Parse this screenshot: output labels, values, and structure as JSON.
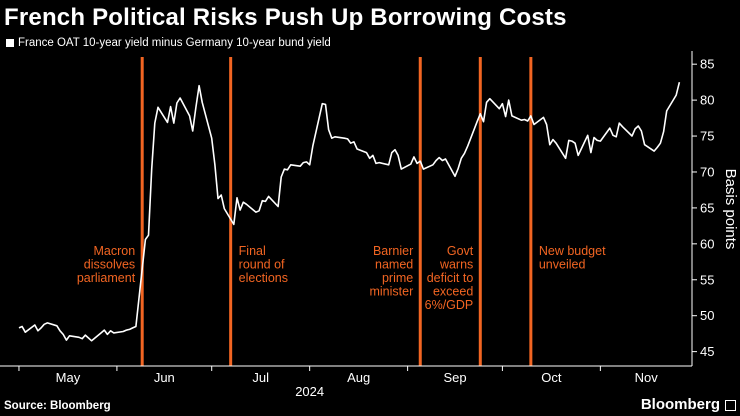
{
  "title": "French Political Risks Push Up Borrowing Costs",
  "footer": {
    "source": "Source: Bloomberg",
    "brand": "Bloomberg"
  },
  "colors": {
    "background": "#000000",
    "line": "#ffffff",
    "event": "#f26522",
    "annotation": "#f26522"
  },
  "chart_data": {
    "type": "line",
    "title": "French Political Risks Push Up Borrowing Costs",
    "series": [
      {
        "name": "France OAT 10-year yield minus Germany 10-year bund yield",
        "points": [
          [
            "2024-05-01",
            48.3
          ],
          [
            "2024-05-02",
            48.5
          ],
          [
            "2024-05-03",
            47.7
          ],
          [
            "2024-05-06",
            48.7
          ],
          [
            "2024-05-07",
            47.9
          ],
          [
            "2024-05-08",
            48.3
          ],
          [
            "2024-05-09",
            48.8
          ],
          [
            "2024-05-10",
            49.0
          ],
          [
            "2024-05-13",
            48.6
          ],
          [
            "2024-05-14",
            47.9
          ],
          [
            "2024-05-15",
            47.4
          ],
          [
            "2024-05-16",
            46.6
          ],
          [
            "2024-05-17",
            47.2
          ],
          [
            "2024-05-20",
            47.0
          ],
          [
            "2024-05-21",
            46.8
          ],
          [
            "2024-05-22",
            47.3
          ],
          [
            "2024-05-23",
            46.9
          ],
          [
            "2024-05-24",
            46.5
          ],
          [
            "2024-05-27",
            47.6
          ],
          [
            "2024-05-28",
            48.0
          ],
          [
            "2024-05-29",
            47.4
          ],
          [
            "2024-05-30",
            47.9
          ],
          [
            "2024-05-31",
            47.6
          ],
          [
            "2024-06-03",
            47.8
          ],
          [
            "2024-06-04",
            48.0
          ],
          [
            "2024-06-05",
            48.1
          ],
          [
            "2024-06-06",
            48.3
          ],
          [
            "2024-06-07",
            48.5
          ],
          [
            "2024-06-10",
            60.6
          ],
          [
            "2024-06-11",
            61.2
          ],
          [
            "2024-06-12",
            70.4
          ],
          [
            "2024-06-13",
            76.8
          ],
          [
            "2024-06-14",
            79.0
          ],
          [
            "2024-06-17",
            76.9
          ],
          [
            "2024-06-18",
            79.1
          ],
          [
            "2024-06-19",
            76.8
          ],
          [
            "2024-06-20",
            79.6
          ],
          [
            "2024-06-21",
            80.3
          ],
          [
            "2024-06-24",
            77.8
          ],
          [
            "2024-06-25",
            75.7
          ],
          [
            "2024-06-26",
            79.0
          ],
          [
            "2024-06-27",
            82.0
          ],
          [
            "2024-06-28",
            79.7
          ],
          [
            "2024-07-01",
            74.7
          ],
          [
            "2024-07-02",
            71.0
          ],
          [
            "2024-07-03",
            66.3
          ],
          [
            "2024-07-04",
            66.8
          ],
          [
            "2024-07-05",
            64.9
          ],
          [
            "2024-07-08",
            62.7
          ],
          [
            "2024-07-09",
            66.4
          ],
          [
            "2024-07-10",
            64.7
          ],
          [
            "2024-07-11",
            65.8
          ],
          [
            "2024-07-12",
            65.5
          ],
          [
            "2024-07-15",
            64.4
          ],
          [
            "2024-07-16",
            64.6
          ],
          [
            "2024-07-17",
            66.0
          ],
          [
            "2024-07-18",
            65.9
          ],
          [
            "2024-07-19",
            66.6
          ],
          [
            "2024-07-22",
            65.2
          ],
          [
            "2024-07-23",
            69.3
          ],
          [
            "2024-07-24",
            70.4
          ],
          [
            "2024-07-25",
            70.3
          ],
          [
            "2024-07-26",
            71.0
          ],
          [
            "2024-07-29",
            70.8
          ],
          [
            "2024-07-30",
            71.3
          ],
          [
            "2024-07-31",
            71.4
          ],
          [
            "2024-08-01",
            71.0
          ],
          [
            "2024-08-02",
            73.6
          ],
          [
            "2024-08-05",
            79.5
          ],
          [
            "2024-08-06",
            79.4
          ],
          [
            "2024-08-07",
            75.9
          ],
          [
            "2024-08-08",
            74.7
          ],
          [
            "2024-08-09",
            74.9
          ],
          [
            "2024-08-12",
            74.7
          ],
          [
            "2024-08-13",
            74.6
          ],
          [
            "2024-08-14",
            74.0
          ],
          [
            "2024-08-15",
            74.2
          ],
          [
            "2024-08-16",
            73.2
          ],
          [
            "2024-08-19",
            72.7
          ],
          [
            "2024-08-20",
            71.9
          ],
          [
            "2024-08-21",
            72.3
          ],
          [
            "2024-08-22",
            71.2
          ],
          [
            "2024-08-23",
            71.3
          ],
          [
            "2024-08-26",
            71.0
          ],
          [
            "2024-08-27",
            72.7
          ],
          [
            "2024-08-28",
            73.1
          ],
          [
            "2024-08-29",
            72.3
          ],
          [
            "2024-08-30",
            70.4
          ],
          [
            "2024-09-02",
            71.1
          ],
          [
            "2024-09-03",
            72.1
          ],
          [
            "2024-09-04",
            71.2
          ],
          [
            "2024-09-05",
            71.5
          ],
          [
            "2024-09-06",
            70.4
          ],
          [
            "2024-09-09",
            71.0
          ],
          [
            "2024-09-10",
            71.6
          ],
          [
            "2024-09-11",
            72.0
          ],
          [
            "2024-09-12",
            71.6
          ],
          [
            "2024-09-13",
            71.8
          ],
          [
            "2024-09-16",
            69.4
          ],
          [
            "2024-09-17",
            70.5
          ],
          [
            "2024-09-18",
            71.9
          ],
          [
            "2024-09-19",
            72.6
          ],
          [
            "2024-09-20",
            73.6
          ],
          [
            "2024-09-23",
            77.0
          ],
          [
            "2024-09-24",
            78.1
          ],
          [
            "2024-09-25",
            77.0
          ],
          [
            "2024-09-26",
            79.7
          ],
          [
            "2024-09-27",
            80.2
          ],
          [
            "2024-09-30",
            78.8
          ],
          [
            "2024-10-01",
            79.5
          ],
          [
            "2024-10-02",
            77.7
          ],
          [
            "2024-10-03",
            80.0
          ],
          [
            "2024-10-04",
            77.8
          ],
          [
            "2024-10-07",
            77.2
          ],
          [
            "2024-10-08",
            77.3
          ],
          [
            "2024-10-09",
            77.1
          ],
          [
            "2024-10-10",
            77.8
          ],
          [
            "2024-10-11",
            76.6
          ],
          [
            "2024-10-14",
            77.6
          ],
          [
            "2024-10-15",
            76.6
          ],
          [
            "2024-10-16",
            73.8
          ],
          [
            "2024-10-17",
            74.5
          ],
          [
            "2024-10-18",
            74.0
          ],
          [
            "2024-10-21",
            71.9
          ],
          [
            "2024-10-22",
            74.4
          ],
          [
            "2024-10-23",
            74.3
          ],
          [
            "2024-10-24",
            74.0
          ],
          [
            "2024-10-25",
            72.3
          ],
          [
            "2024-10-28",
            75.1
          ],
          [
            "2024-10-29",
            72.7
          ],
          [
            "2024-10-30",
            74.8
          ],
          [
            "2024-10-31",
            74.4
          ],
          [
            "2024-11-01",
            74.3
          ],
          [
            "2024-11-04",
            76.1
          ],
          [
            "2024-11-05",
            75.1
          ],
          [
            "2024-11-06",
            74.9
          ],
          [
            "2024-11-07",
            76.8
          ],
          [
            "2024-11-08",
            76.3
          ],
          [
            "2024-11-11",
            75.0
          ],
          [
            "2024-11-12",
            76.0
          ],
          [
            "2024-11-13",
            76.4
          ],
          [
            "2024-11-14",
            75.7
          ],
          [
            "2024-11-15",
            73.8
          ],
          [
            "2024-11-18",
            72.9
          ],
          [
            "2024-11-19",
            73.4
          ],
          [
            "2024-11-20",
            74.0
          ],
          [
            "2024-11-21",
            75.6
          ],
          [
            "2024-11-22",
            78.5
          ],
          [
            "2024-11-25",
            80.7
          ],
          [
            "2024-11-26",
            82.5
          ]
        ]
      }
    ],
    "events": [
      {
        "date": "2024-06-09",
        "label": "Macron dissolves parliament",
        "label_lines": [
          "Macron",
          "dissolves",
          "parliament"
        ],
        "label_side": "left"
      },
      {
        "date": "2024-07-07",
        "label": "Final round of elections",
        "label_lines": [
          "Final",
          "round of",
          "elections"
        ],
        "label_side": "right"
      },
      {
        "date": "2024-09-05",
        "label": "Barnier named prime minister",
        "label_lines": [
          "Barnier",
          "named",
          "prime",
          "minister"
        ],
        "label_side": "left"
      },
      {
        "date": "2024-09-24",
        "label": "Govt warns deficit to exceed 6%/GDP",
        "label_lines": [
          "Govt",
          "warns",
          "deficit to",
          "exceed",
          "6%/GDP"
        ],
        "label_side": "left"
      },
      {
        "date": "2024-10-10",
        "label": "New budget unveiled",
        "label_lines": [
          "New budget",
          "unveiled"
        ],
        "label_side": "right"
      }
    ],
    "x_axis": {
      "type": "date",
      "range": [
        "2024-04-25",
        "2024-11-30"
      ],
      "ticks": [
        "2024-05-01",
        "2024-06-01",
        "2024-07-01",
        "2024-08-01",
        "2024-09-01",
        "2024-10-01",
        "2024-11-01"
      ],
      "tick_labels": [
        "May",
        "Jun",
        "Jul",
        "Aug",
        "Sep",
        "Oct",
        "Nov"
      ],
      "year_label": "2024"
    },
    "y_axis": {
      "label": "Basis points",
      "position": "right",
      "range": [
        43,
        86
      ],
      "ticks": [
        45,
        50,
        55,
        60,
        65,
        70,
        75,
        80,
        85
      ]
    },
    "grid": false,
    "legend": "top-left"
  }
}
